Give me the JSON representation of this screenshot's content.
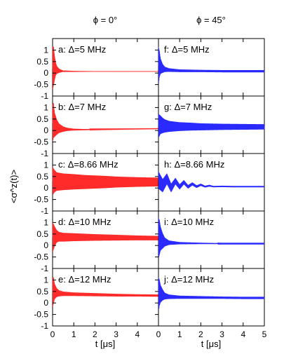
{
  "figure": {
    "column_titles": [
      "ϕ = 0°",
      "ϕ = 45°"
    ],
    "ylabel": "<σ^z(t)>",
    "xlabel": "t [μs]",
    "colors": {
      "left": "#ff2a2a",
      "right": "#2a2aff",
      "axis": "#000000"
    }
  },
  "chart_data": [
    {
      "type": "line",
      "panel_label": "a: Δ=5 MHz",
      "series_color": "#ff2a2a",
      "xlim": [
        0,
        5
      ],
      "ylim": [
        -1,
        1.5
      ],
      "xticks": [
        0,
        1,
        2,
        3,
        4
      ],
      "yticks": [
        -0.5,
        0,
        0.5,
        1
      ],
      "x_knots": [
        0,
        0.05,
        0.1,
        0.15,
        0.2,
        0.3,
        0.4,
        0.5,
        0.6,
        1,
        2,
        3,
        4,
        5
      ],
      "center": [
        0.2,
        0.3,
        0.22,
        0.18,
        0.14,
        0.1,
        0.09,
        0.08,
        0.08,
        0.07,
        0.07,
        0.07,
        0.07,
        0.07
      ],
      "amplitude": [
        1.0,
        0.9,
        0.55,
        0.3,
        0.18,
        0.1,
        0.06,
        0.03,
        0.015,
        0.01,
        0.005,
        0.005,
        0.005,
        0.005
      ]
    },
    {
      "type": "line",
      "panel_label": "b: Δ=7 MHz",
      "series_color": "#ff2a2a",
      "xlim": [
        0,
        5
      ],
      "ylim": [
        -1,
        1.5
      ],
      "xticks": [
        0,
        1,
        2,
        3,
        4
      ],
      "yticks": [
        -0.5,
        0,
        0.5,
        1
      ],
      "x_knots": [
        0,
        0.05,
        0.1,
        0.2,
        0.3,
        0.5,
        0.7,
        1,
        1.5,
        2,
        3,
        4,
        5
      ],
      "center": [
        0.3,
        0.45,
        0.25,
        0.15,
        0.1,
        0.06,
        0.05,
        0.04,
        0.04,
        0.05,
        0.06,
        0.07,
        0.08
      ],
      "amplitude": [
        0.9,
        0.8,
        0.55,
        0.35,
        0.22,
        0.12,
        0.07,
        0.04,
        0.025,
        0.02,
        0.015,
        0.012,
        0.01
      ]
    },
    {
      "type": "line",
      "panel_label": "c: Δ=8.66 MHz",
      "series_color": "#ff2a2a",
      "xlim": [
        0,
        5
      ],
      "ylim": [
        -1,
        1.5
      ],
      "xticks": [
        0,
        1,
        2,
        3,
        4
      ],
      "yticks": [
        -0.5,
        0,
        0.5,
        1
      ],
      "x_knots": [
        0,
        0.1,
        0.2,
        0.5,
        1,
        1.5,
        2,
        2.5,
        3,
        4,
        5
      ],
      "center": [
        0.3,
        0.3,
        0.28,
        0.27,
        0.27,
        0.26,
        0.26,
        0.26,
        0.26,
        0.26,
        0.26
      ],
      "amplitude": [
        0.65,
        0.5,
        0.42,
        0.38,
        0.35,
        0.32,
        0.3,
        0.28,
        0.25,
        0.22,
        0.2
      ]
    },
    {
      "type": "line",
      "panel_label": "d: Δ=10 MHz",
      "series_color": "#ff2a2a",
      "xlim": [
        0,
        5
      ],
      "ylim": [
        -1,
        1.5
      ],
      "xticks": [
        0,
        1,
        2,
        3,
        4
      ],
      "yticks": [
        -0.5,
        0,
        0.5,
        1
      ],
      "x_knots": [
        0,
        0.1,
        0.2,
        0.3,
        0.5,
        1,
        2,
        3,
        4,
        5
      ],
      "center": [
        0.35,
        0.4,
        0.4,
        0.38,
        0.36,
        0.36,
        0.35,
        0.34,
        0.33,
        0.32
      ],
      "amplitude": [
        0.7,
        0.45,
        0.28,
        0.22,
        0.2,
        0.18,
        0.15,
        0.13,
        0.11,
        0.1
      ]
    },
    {
      "type": "line",
      "panel_label": "e: Δ=12 MHz",
      "series_color": "#ff2a2a",
      "xlim": [
        0,
        5
      ],
      "ylim": [
        -1,
        1.5
      ],
      "xticks": [
        0,
        1,
        2,
        3,
        4
      ],
      "yticks": [
        -0.5,
        0,
        0.5,
        1
      ],
      "x_knots": [
        0,
        0.05,
        0.1,
        0.2,
        0.3,
        0.5,
        1,
        2,
        3,
        4,
        5
      ],
      "center": [
        0.45,
        0.55,
        0.5,
        0.45,
        0.42,
        0.4,
        0.38,
        0.36,
        0.34,
        0.33,
        0.32
      ],
      "amplitude": [
        0.7,
        0.6,
        0.35,
        0.2,
        0.14,
        0.1,
        0.08,
        0.07,
        0.06,
        0.05,
        0.05
      ]
    },
    {
      "type": "line",
      "panel_label": "f: Δ=5 MHz",
      "series_color": "#2a2aff",
      "xlim": [
        0,
        5
      ],
      "ylim": [
        -1,
        1.5
      ],
      "xticks": [
        0,
        1,
        2,
        3,
        4,
        5
      ],
      "yticks": [],
      "x_knots": [
        0,
        0.05,
        0.1,
        0.2,
        0.3,
        0.5,
        1,
        2,
        3,
        4,
        5
      ],
      "center": [
        0.3,
        0.4,
        0.3,
        0.2,
        0.16,
        0.13,
        0.1,
        0.09,
        0.08,
        0.08,
        0.08
      ],
      "amplitude": [
        0.9,
        0.6,
        0.35,
        0.2,
        0.12,
        0.08,
        0.06,
        0.05,
        0.05,
        0.05,
        0.05
      ]
    },
    {
      "type": "line",
      "panel_label": "g: Δ=7 MHz",
      "series_color": "#2a2aff",
      "xlim": [
        0,
        5
      ],
      "ylim": [
        -1,
        1.5
      ],
      "xticks": [
        0,
        1,
        2,
        3,
        4,
        5
      ],
      "yticks": [],
      "x_knots": [
        0,
        0.1,
        0.2,
        0.3,
        0.5,
        1,
        1.5,
        2,
        3,
        4,
        5
      ],
      "center": [
        0.2,
        0.25,
        0.22,
        0.2,
        0.18,
        0.17,
        0.17,
        0.16,
        0.16,
        0.16,
        0.16
      ],
      "amplitude": [
        0.55,
        0.42,
        0.35,
        0.3,
        0.25,
        0.2,
        0.18,
        0.16,
        0.14,
        0.13,
        0.12
      ]
    },
    {
      "type": "line",
      "panel_label": "h: Δ=8.66 MHz",
      "series_color": "#2a2aff",
      "xlim": [
        0,
        5
      ],
      "ylim": [
        -1,
        1.5
      ],
      "xticks": [
        0,
        1,
        2,
        3,
        4,
        5
      ],
      "yticks": [],
      "x_knots": [
        0,
        0.2,
        0.4,
        0.6,
        0.8,
        1,
        1.2,
        1.4,
        1.6,
        1.8,
        2,
        2.2,
        2.4,
        2.6,
        3,
        3.5,
        4,
        5
      ],
      "center": [
        0.35,
        0.1,
        0.4,
        0.0,
        0.3,
        0.05,
        0.25,
        0.05,
        0.18,
        0.06,
        0.14,
        0.06,
        0.1,
        0.06,
        0.07,
        0.06,
        0.06,
        0.06
      ],
      "amplitude": [
        0.4,
        0.3,
        0.25,
        0.2,
        0.15,
        0.12,
        0.1,
        0.08,
        0.07,
        0.06,
        0.05,
        0.04,
        0.04,
        0.03,
        0.03,
        0.03,
        0.03,
        0.03
      ]
    },
    {
      "type": "line",
      "panel_label": "i: Δ=10 MHz",
      "series_color": "#2a2aff",
      "xlim": [
        0,
        5
      ],
      "ylim": [
        -1,
        1.5
      ],
      "xticks": [
        0,
        1,
        2,
        3,
        4,
        5
      ],
      "yticks": [],
      "x_knots": [
        0,
        0.05,
        0.1,
        0.2,
        0.3,
        0.5,
        1,
        2,
        3,
        4,
        5
      ],
      "center": [
        0.3,
        0.35,
        0.3,
        0.2,
        0.15,
        0.12,
        0.1,
        0.09,
        0.08,
        0.08,
        0.08
      ],
      "amplitude": [
        0.95,
        0.8,
        0.55,
        0.35,
        0.2,
        0.1,
        0.05,
        0.03,
        0.02,
        0.02,
        0.02
      ]
    },
    {
      "type": "line",
      "panel_label": "j: Δ=12 MHz",
      "series_color": "#2a2aff",
      "xlim": [
        0,
        5
      ],
      "ylim": [
        -1,
        1.5
      ],
      "xticks": [
        0,
        1,
        2,
        3,
        4,
        5
      ],
      "yticks": [],
      "x_knots": [
        0,
        0.05,
        0.1,
        0.2,
        0.3,
        0.5,
        1,
        2,
        3,
        4,
        5
      ],
      "center": [
        0.35,
        0.45,
        0.4,
        0.35,
        0.3,
        0.27,
        0.25,
        0.24,
        0.23,
        0.22,
        0.22
      ],
      "amplitude": [
        0.8,
        0.6,
        0.4,
        0.25,
        0.15,
        0.1,
        0.07,
        0.06,
        0.05,
        0.05,
        0.05
      ]
    }
  ]
}
